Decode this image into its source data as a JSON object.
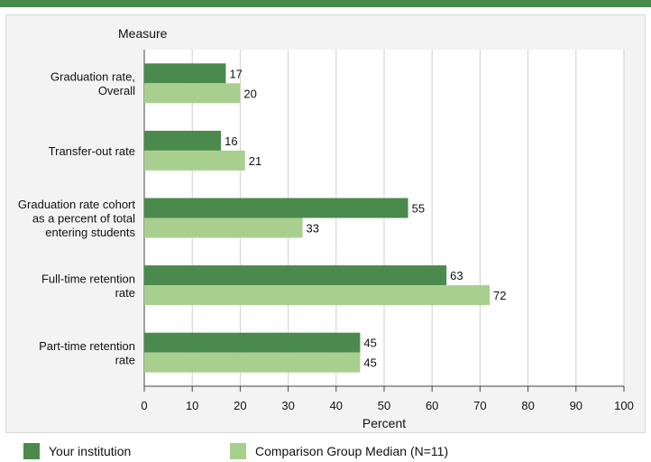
{
  "chart_data": {
    "type": "bar",
    "orientation": "horizontal",
    "y_axis_title": "Measure",
    "xlabel": "Percent",
    "xlim": [
      0,
      100
    ],
    "xticks": [
      0,
      10,
      20,
      30,
      40,
      50,
      60,
      70,
      80,
      90,
      100
    ],
    "grid": true,
    "legend_position": "bottom",
    "categories": [
      [
        "Graduation rate,",
        "Overall"
      ],
      [
        "Transfer-out rate"
      ],
      [
        "Graduation rate cohort",
        "as a percent of total",
        "entering students"
      ],
      [
        "Full-time retention",
        "rate"
      ],
      [
        "Part-time retention",
        "rate"
      ]
    ],
    "series": [
      {
        "name": "Your institution",
        "color": "#4a8a4d",
        "values": [
          17,
          16,
          55,
          63,
          45
        ]
      },
      {
        "name": "Comparison Group Median (N=11)",
        "color": "#a9cf8e",
        "values": [
          20,
          21,
          33,
          72,
          45
        ]
      }
    ]
  }
}
